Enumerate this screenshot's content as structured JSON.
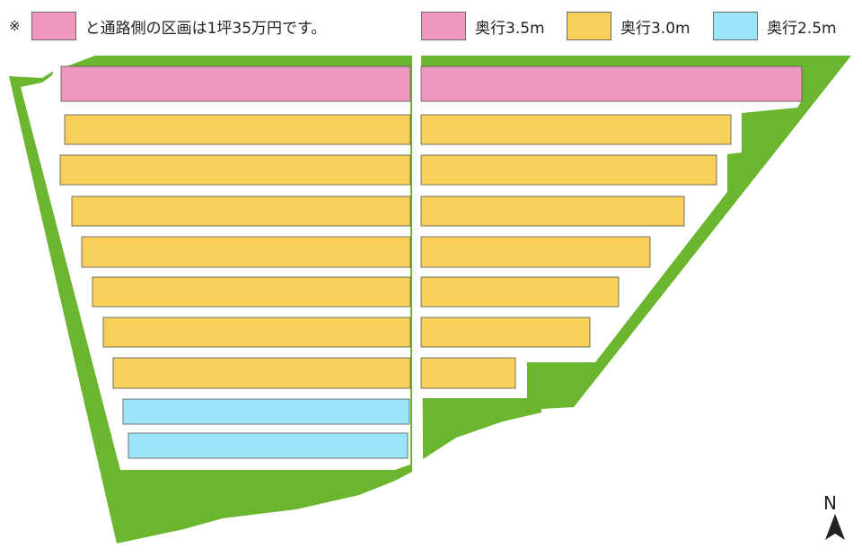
{
  "colors": {
    "green": "#6cb62f",
    "pink": "#ef97bf",
    "yellow": "#f8cf58",
    "cyan": "#9ae6f8",
    "path": "#ffffff",
    "north": "#222222"
  },
  "note": {
    "mark": "※",
    "text": "と通路側の区画は1坪35万円です。"
  },
  "legend": [
    {
      "label": "奥行3.5m",
      "color": "pink"
    },
    {
      "label": "奥行3.0m",
      "color": "yellow"
    },
    {
      "label": "奥行2.5m",
      "color": "cyan"
    }
  ],
  "north": {
    "label": "N",
    "icon": "north-arrow-icon"
  },
  "lots": {
    "left": [
      "pink",
      "yellow",
      "yellow",
      "yellow",
      "yellow",
      "yellow",
      "yellow",
      "yellow",
      "cyan",
      "cyan"
    ],
    "right": [
      "pink",
      "yellow",
      "yellow",
      "yellow",
      "yellow",
      "yellow",
      "yellow",
      "yellow"
    ]
  }
}
